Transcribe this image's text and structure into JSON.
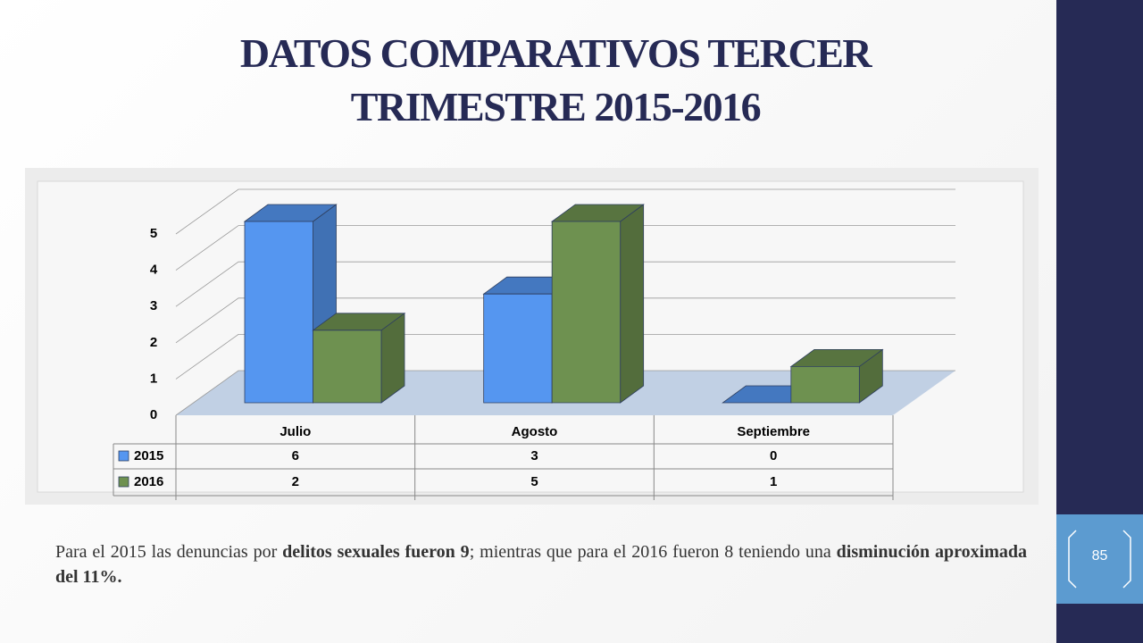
{
  "title": "DATOS COMPARATIVOS TERCER TRIMESTRE 2015-2016",
  "chart_data": {
    "type": "bar3d",
    "categories": [
      "Julio",
      "Agosto",
      "Septiembre"
    ],
    "series": [
      {
        "name": "2015",
        "color": "#5596f0",
        "values": [
          6,
          3,
          0
        ]
      },
      {
        "name": "2016",
        "color": "#6e9150",
        "values": [
          2,
          5,
          1
        ]
      }
    ],
    "ylim": [
      0,
      5
    ],
    "yticks": [
      0,
      1,
      2,
      3,
      4,
      5
    ],
    "grid": true,
    "data_table": true
  },
  "paragraph": [
    {
      "text": "Para el 2015 las denuncias por ",
      "bold": false
    },
    {
      "text": "delitos sexuales fueron 9",
      "bold": true
    },
    {
      "text": "; mientras que para el 2016 fueron 8 teniendo una ",
      "bold": false
    },
    {
      "text": "disminución aproximada del 11%.",
      "bold": true
    }
  ],
  "slide_number": "85"
}
